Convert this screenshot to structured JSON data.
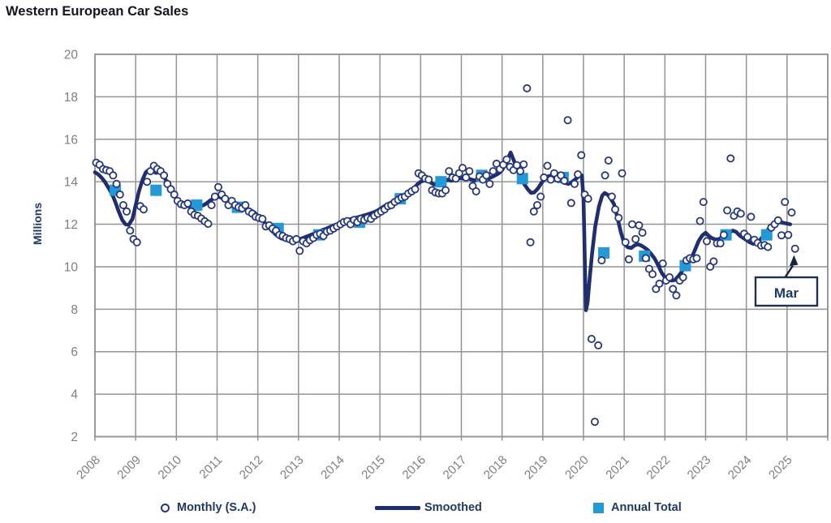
{
  "title": "Western European Car Sales",
  "y_axis": {
    "label": "Millions",
    "ticks": [
      20,
      18,
      16,
      14,
      12,
      10,
      8,
      6,
      4,
      2
    ]
  },
  "x_axis": {
    "ticks": [
      "2008",
      "2009",
      "2010",
      "2011",
      "2012",
      "2013",
      "2014",
      "2015",
      "2016",
      "2017",
      "2018",
      "2019",
      "2020",
      "2021",
      "2022",
      "2023",
      "2024",
      "2025"
    ]
  },
  "legend": {
    "monthly_label": "Monthly (S.A.)",
    "smoothed_label": "Smoothed",
    "annual_label": "Annual Total"
  },
  "annotation": {
    "label": "Mar"
  },
  "colors": {
    "smoothed_line": "#1e2e6e",
    "monthly_marker_stroke": "#26367e",
    "annual_square": "#2399d6",
    "grid": "#949494",
    "tick_text": "#7f7f7f",
    "navy_text": "#1f3864",
    "title_text": "#14141f",
    "annotation_border": "#1f3050",
    "arrow": "#17233f"
  },
  "chart_data": {
    "type": "line",
    "title": "Western European Car Sales",
    "xlabel": "",
    "ylabel": "Millions",
    "ylim": [
      2,
      20
    ],
    "xlim_years": [
      2008,
      2026
    ],
    "grid": true,
    "legend_position": "bottom",
    "series": [
      {
        "name": "Monthly (S.A.)",
        "type": "scatter",
        "start_year": 2008,
        "start_month": 1,
        "values": [
          14.9,
          14.8,
          14.6,
          14.55,
          14.5,
          14.3,
          13.9,
          13.4,
          12.9,
          12.6,
          11.7,
          11.3,
          11.15,
          12.85,
          12.7,
          14.0,
          14.5,
          14.75,
          14.6,
          14.5,
          14.3,
          13.9,
          13.65,
          13.4,
          13.1,
          12.95,
          12.9,
          12.98,
          12.6,
          12.45,
          12.4,
          12.27,
          12.14,
          12.02,
          12.9,
          13.3,
          13.75,
          13.4,
          13.2,
          12.9,
          13.1,
          12.9,
          12.8,
          12.75,
          12.9,
          12.6,
          12.5,
          12.35,
          12.3,
          12.25,
          11.9,
          11.95,
          11.8,
          11.7,
          11.5,
          11.45,
          11.35,
          11.3,
          11.2,
          11.3,
          10.75,
          11.2,
          11.1,
          11.25,
          11.35,
          11.5,
          11.55,
          11.45,
          11.65,
          11.7,
          11.8,
          11.9,
          12.0,
          12.1,
          12.15,
          12.0,
          12.2,
          12.1,
          12.25,
          12.2,
          12.3,
          12.25,
          12.4,
          12.5,
          12.6,
          12.7,
          12.85,
          12.9,
          13.05,
          13.15,
          13.25,
          13.3,
          13.45,
          13.55,
          13.65,
          14.4,
          14.3,
          14.15,
          14.1,
          13.6,
          13.5,
          13.45,
          13.45,
          13.6,
          14.5,
          14.2,
          14.15,
          14.4,
          14.65,
          14.2,
          14.5,
          13.8,
          13.55,
          14.25,
          14.1,
          14.3,
          13.9,
          14.5,
          14.85,
          14.6,
          14.8,
          15.05,
          14.7,
          14.55,
          14.78,
          14.5,
          14.82,
          18.4,
          11.15,
          12.6,
          12.9,
          13.3,
          14.2,
          14.75,
          14.1,
          14.4,
          14.15,
          14.3,
          14.05,
          16.9,
          13.0,
          13.9,
          14.35,
          15.25,
          13.4,
          13.2,
          6.6,
          2.7,
          6.3,
          10.3,
          14.3,
          15.0,
          13.3,
          12.7,
          12.3,
          14.4,
          11.15,
          10.35,
          12.0,
          11.3,
          11.95,
          11.6,
          10.4,
          9.9,
          9.65,
          8.95,
          9.2,
          10.15,
          9.35,
          9.5,
          8.95,
          8.65,
          9.35,
          9.5,
          10.3,
          10.4,
          10.35,
          10.4,
          12.15,
          13.05,
          11.2,
          10.0,
          10.25,
          11.1,
          11.1,
          11.5,
          12.65,
          15.1,
          12.4,
          12.6,
          12.5,
          11.55,
          11.4,
          12.35,
          11.27,
          11.12,
          11.0,
          11.02,
          10.93,
          11.84,
          12.0,
          12.18,
          11.48,
          13.05,
          11.5,
          12.55,
          10.85
        ]
      },
      {
        "name": "Smoothed",
        "type": "line",
        "points": [
          [
            2008.0,
            14.45
          ],
          [
            2008.08,
            14.35
          ],
          [
            2008.17,
            14.18
          ],
          [
            2008.25,
            13.98
          ],
          [
            2008.33,
            13.72
          ],
          [
            2008.42,
            13.42
          ],
          [
            2008.5,
            13.05
          ],
          [
            2008.58,
            12.62
          ],
          [
            2008.67,
            12.2
          ],
          [
            2008.75,
            12.0
          ],
          [
            2008.83,
            11.97
          ],
          [
            2008.92,
            12.25
          ],
          [
            2009.0,
            12.9
          ],
          [
            2009.08,
            13.55
          ],
          [
            2009.17,
            14.1
          ],
          [
            2009.25,
            14.45
          ],
          [
            2009.33,
            14.57
          ],
          [
            2009.42,
            14.5
          ],
          [
            2009.5,
            14.42
          ],
          [
            2009.58,
            14.47
          ],
          [
            2009.67,
            14.32
          ],
          [
            2009.75,
            14.05
          ],
          [
            2009.83,
            13.75
          ],
          [
            2009.92,
            13.45
          ],
          [
            2010.0,
            13.2
          ],
          [
            2010.08,
            13.0
          ],
          [
            2010.17,
            12.92
          ],
          [
            2010.25,
            12.87
          ],
          [
            2010.33,
            12.83
          ],
          [
            2010.42,
            12.8
          ],
          [
            2010.5,
            12.8
          ],
          [
            2010.58,
            12.84
          ],
          [
            2010.67,
            12.9
          ],
          [
            2010.75,
            13.0
          ],
          [
            2010.83,
            13.12
          ],
          [
            2010.92,
            13.22
          ],
          [
            2011.0,
            13.3
          ],
          [
            2011.08,
            13.27
          ],
          [
            2011.17,
            13.18
          ],
          [
            2011.25,
            13.08
          ],
          [
            2011.33,
            12.98
          ],
          [
            2011.42,
            12.9
          ],
          [
            2011.5,
            12.82
          ],
          [
            2011.58,
            12.78
          ],
          [
            2011.67,
            12.73
          ],
          [
            2011.75,
            12.7
          ],
          [
            2011.83,
            12.66
          ],
          [
            2011.92,
            12.55
          ],
          [
            2012.0,
            12.4
          ],
          [
            2012.08,
            12.25
          ],
          [
            2012.17,
            12.08
          ],
          [
            2012.25,
            11.9
          ],
          [
            2012.33,
            11.72
          ],
          [
            2012.42,
            11.55
          ],
          [
            2012.5,
            11.42
          ],
          [
            2012.58,
            11.33
          ],
          [
            2012.67,
            11.28
          ],
          [
            2012.75,
            11.25
          ],
          [
            2012.83,
            11.24
          ],
          [
            2012.92,
            11.25
          ],
          [
            2013.0,
            11.28
          ],
          [
            2013.08,
            11.33
          ],
          [
            2013.17,
            11.4
          ],
          [
            2013.25,
            11.46
          ],
          [
            2013.33,
            11.52
          ],
          [
            2013.42,
            11.58
          ],
          [
            2013.5,
            11.65
          ],
          [
            2013.58,
            11.72
          ],
          [
            2013.67,
            11.78
          ],
          [
            2013.75,
            11.85
          ],
          [
            2013.83,
            11.92
          ],
          [
            2013.92,
            11.98
          ],
          [
            2014.0,
            12.04
          ],
          [
            2014.08,
            12.1
          ],
          [
            2014.17,
            12.17
          ],
          [
            2014.25,
            12.22
          ],
          [
            2014.33,
            12.27
          ],
          [
            2014.42,
            12.31
          ],
          [
            2014.5,
            12.35
          ],
          [
            2014.58,
            12.4
          ],
          [
            2014.67,
            12.45
          ],
          [
            2014.75,
            12.5
          ],
          [
            2014.83,
            12.55
          ],
          [
            2014.92,
            12.62
          ],
          [
            2015.0,
            12.72
          ],
          [
            2015.08,
            12.82
          ],
          [
            2015.17,
            12.92
          ],
          [
            2015.25,
            13.0
          ],
          [
            2015.33,
            13.08
          ],
          [
            2015.42,
            13.15
          ],
          [
            2015.5,
            13.22
          ],
          [
            2015.58,
            13.3
          ],
          [
            2015.67,
            13.36
          ],
          [
            2015.75,
            13.48
          ],
          [
            2015.83,
            13.68
          ],
          [
            2015.92,
            13.88
          ],
          [
            2016.0,
            14.0
          ],
          [
            2016.08,
            14.06
          ],
          [
            2016.17,
            14.1
          ],
          [
            2016.25,
            13.96
          ],
          [
            2016.33,
            13.86
          ],
          [
            2016.42,
            13.9
          ],
          [
            2016.5,
            13.95
          ],
          [
            2016.58,
            14.0
          ],
          [
            2016.67,
            14.1
          ],
          [
            2016.75,
            14.05
          ],
          [
            2016.83,
            14.08
          ],
          [
            2016.92,
            14.14
          ],
          [
            2017.0,
            14.18
          ],
          [
            2017.08,
            14.12
          ],
          [
            2017.17,
            14.16
          ],
          [
            2017.25,
            14.1
          ],
          [
            2017.33,
            14.06
          ],
          [
            2017.42,
            14.15
          ],
          [
            2017.5,
            14.25
          ],
          [
            2017.58,
            14.2
          ],
          [
            2017.67,
            14.16
          ],
          [
            2017.75,
            14.22
          ],
          [
            2017.83,
            14.3
          ],
          [
            2017.92,
            14.4
          ],
          [
            2018.0,
            14.55
          ],
          [
            2018.08,
            14.82
          ],
          [
            2018.17,
            15.2
          ],
          [
            2018.21,
            15.38
          ],
          [
            2018.29,
            15.0
          ],
          [
            2018.38,
            14.55
          ],
          [
            2018.46,
            14.2
          ],
          [
            2018.54,
            13.9
          ],
          [
            2018.63,
            13.65
          ],
          [
            2018.71,
            13.48
          ],
          [
            2018.79,
            13.5
          ],
          [
            2018.88,
            13.68
          ],
          [
            2018.96,
            13.92
          ],
          [
            2019.04,
            14.12
          ],
          [
            2019.13,
            14.25
          ],
          [
            2019.21,
            14.3
          ],
          [
            2019.29,
            14.28
          ],
          [
            2019.38,
            14.2
          ],
          [
            2019.46,
            14.08
          ],
          [
            2019.54,
            13.94
          ],
          [
            2019.63,
            13.9
          ],
          [
            2019.71,
            13.98
          ],
          [
            2019.79,
            14.1
          ],
          [
            2019.88,
            14.25
          ],
          [
            2019.96,
            14.3
          ],
          [
            2020.0,
            13.2
          ],
          [
            2020.02,
            11.5
          ],
          [
            2020.04,
            9.6
          ],
          [
            2020.06,
            7.95
          ],
          [
            2020.1,
            8.3
          ],
          [
            2020.15,
            9.4
          ],
          [
            2020.21,
            10.6
          ],
          [
            2020.29,
            11.9
          ],
          [
            2020.38,
            12.85
          ],
          [
            2020.46,
            13.35
          ],
          [
            2020.52,
            13.47
          ],
          [
            2020.6,
            13.38
          ],
          [
            2020.67,
            13.2
          ],
          [
            2020.75,
            12.95
          ],
          [
            2020.83,
            12.35
          ],
          [
            2020.92,
            11.6
          ],
          [
            2021.0,
            11.1
          ],
          [
            2021.08,
            10.92
          ],
          [
            2021.17,
            10.88
          ],
          [
            2021.25,
            11.0
          ],
          [
            2021.33,
            11.06
          ],
          [
            2021.42,
            11.0
          ],
          [
            2021.5,
            10.9
          ],
          [
            2021.58,
            10.78
          ],
          [
            2021.67,
            10.58
          ],
          [
            2021.75,
            10.38
          ],
          [
            2021.83,
            10.08
          ],
          [
            2021.92,
            9.72
          ],
          [
            2022.0,
            9.5
          ],
          [
            2022.08,
            9.4
          ],
          [
            2022.17,
            9.35
          ],
          [
            2022.25,
            9.38
          ],
          [
            2022.33,
            9.55
          ],
          [
            2022.42,
            9.78
          ],
          [
            2022.5,
            10.02
          ],
          [
            2022.58,
            10.22
          ],
          [
            2022.67,
            10.48
          ],
          [
            2022.75,
            10.85
          ],
          [
            2022.83,
            11.22
          ],
          [
            2022.92,
            11.48
          ],
          [
            2023.0,
            11.6
          ],
          [
            2023.08,
            11.45
          ],
          [
            2023.17,
            11.33
          ],
          [
            2023.25,
            11.28
          ],
          [
            2023.33,
            11.3
          ],
          [
            2023.42,
            11.42
          ],
          [
            2023.5,
            11.52
          ],
          [
            2023.58,
            11.62
          ],
          [
            2023.67,
            11.7
          ],
          [
            2023.75,
            11.64
          ],
          [
            2023.83,
            11.48
          ],
          [
            2023.92,
            11.36
          ],
          [
            2024.0,
            11.26
          ],
          [
            2024.08,
            11.15
          ],
          [
            2024.17,
            11.08
          ],
          [
            2024.25,
            11.1
          ],
          [
            2024.33,
            11.25
          ],
          [
            2024.42,
            11.45
          ],
          [
            2024.5,
            11.65
          ],
          [
            2024.58,
            11.88
          ],
          [
            2024.67,
            12.08
          ],
          [
            2024.75,
            12.17
          ],
          [
            2024.83,
            12.12
          ],
          [
            2024.92,
            12.06
          ],
          [
            2025.0,
            12.03
          ],
          [
            2025.08,
            12.0
          ]
        ]
      },
      {
        "name": "Annual Total",
        "type": "square-markers",
        "years": [
          2008,
          2009,
          2010,
          2011,
          2012,
          2013,
          2014,
          2015,
          2016,
          2017,
          2018,
          2019,
          2020,
          2021,
          2022,
          2023,
          2024
        ],
        "values": [
          13.6,
          13.6,
          12.9,
          12.8,
          11.8,
          11.5,
          12.1,
          13.2,
          14.0,
          14.3,
          14.15,
          14.2,
          10.65,
          10.5,
          10.05,
          11.5,
          11.5
        ]
      }
    ],
    "annotation": {
      "text": "Mar",
      "points_to": {
        "x": 2025.17,
        "y": 10.85
      }
    }
  }
}
